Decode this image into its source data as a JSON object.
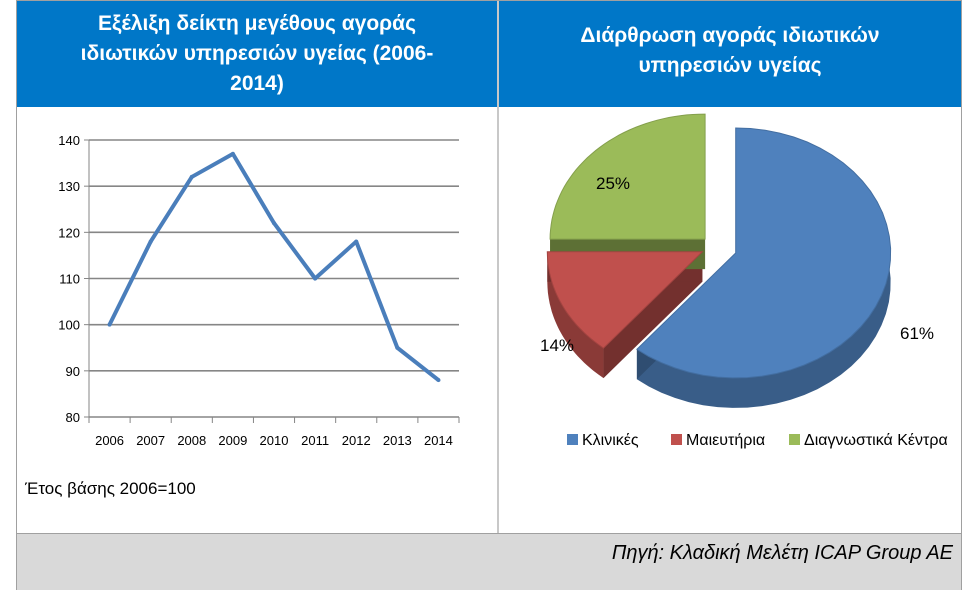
{
  "left_panel": {
    "title_lines": [
      "Εξέλιξη δείκτη μεγέθους αγοράς",
      "ιδιωτικών υπηρεσιών υγείας (2006-",
      "2014)"
    ],
    "note": "Έτος βάσης 2006=100"
  },
  "right_panel": {
    "title_lines": [
      "Διάρθρωση αγοράς ιδιωτικών",
      "υπηρεσιών υγείας"
    ]
  },
  "footer": {
    "source": "Πηγή: Κλαδική Μελέτη ICAP Group AE"
  },
  "chart_data": [
    {
      "type": "line",
      "title": "Εξέλιξη δείκτη μεγέθους αγοράς ιδιωτικών υπηρεσιών υγείας (2006-2014)",
      "categories": [
        "2006",
        "2007",
        "2008",
        "2009",
        "2010",
        "2011",
        "2012",
        "2013",
        "2014"
      ],
      "series": [
        {
          "values": [
            100,
            118,
            132,
            137,
            122,
            110,
            118,
            95,
            88
          ],
          "color": "#4a7ebb"
        }
      ],
      "ylim": [
        80,
        140
      ],
      "yticks": [
        80,
        90,
        100,
        110,
        120,
        130,
        140
      ],
      "grid": true
    },
    {
      "type": "pie",
      "title": "Διάρθρωση αγοράς ιδιωτικών υπηρεσιών υγείας",
      "slices": [
        {
          "label": "Κλινικές",
          "value": 61,
          "value_label": "61%",
          "color": "#4f81bd"
        },
        {
          "label": "Μαιευτήρια",
          "value": 14,
          "value_label": "14%",
          "color": "#c0504d"
        },
        {
          "label": "Διαγνωστικά Κέντρα",
          "value": 25,
          "value_label": "25%",
          "color": "#9bbb59"
        }
      ],
      "legend_position": "bottom"
    }
  ]
}
